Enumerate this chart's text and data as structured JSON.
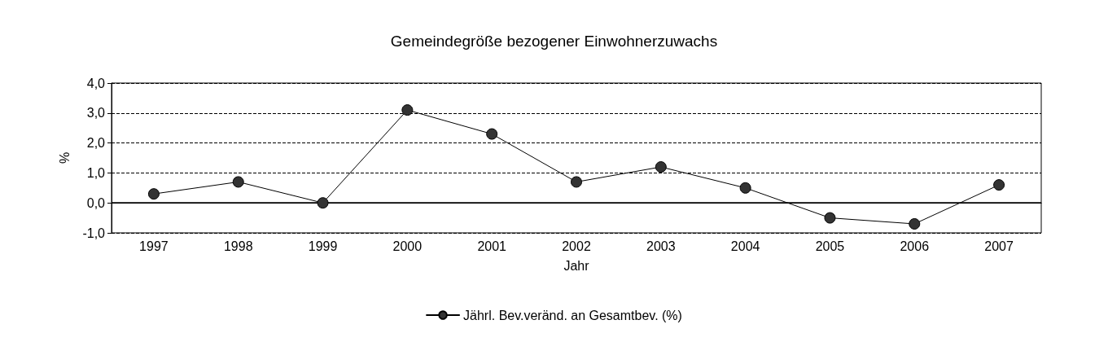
{
  "chart_data": {
    "type": "line",
    "title": "Gemeindegröße bezogener Einwohnerzuwachs",
    "xlabel": "Jahr",
    "ylabel": "%",
    "categories": [
      "1997",
      "1998",
      "1999",
      "2000",
      "2001",
      "2002",
      "2003",
      "2004",
      "2005",
      "2006",
      "2007"
    ],
    "series": [
      {
        "name": "Jährl. Bev.veränd. an Gesamtbev. (%)",
        "color": "#333333",
        "values": [
          0.3,
          0.7,
          0.0,
          3.1,
          2.3,
          0.7,
          1.2,
          0.5,
          -0.5,
          -0.7,
          0.6
        ]
      }
    ],
    "ylim": [
      -1,
      4
    ],
    "yticks": [
      {
        "value": -1,
        "label": "-1,0"
      },
      {
        "value": 0,
        "label": "0,0"
      },
      {
        "value": 1,
        "label": "1,0"
      },
      {
        "value": 2,
        "label": "2,0"
      },
      {
        "value": 3,
        "label": "3,0"
      },
      {
        "value": 4,
        "label": "4,0"
      }
    ],
    "grid": "y",
    "line_style": "solid",
    "marker": "circle",
    "legend": "bottom",
    "ref_lines": [
      {
        "axis": "y",
        "value": 0,
        "label": null,
        "color": "#000000",
        "line_style": "solid"
      }
    ]
  }
}
